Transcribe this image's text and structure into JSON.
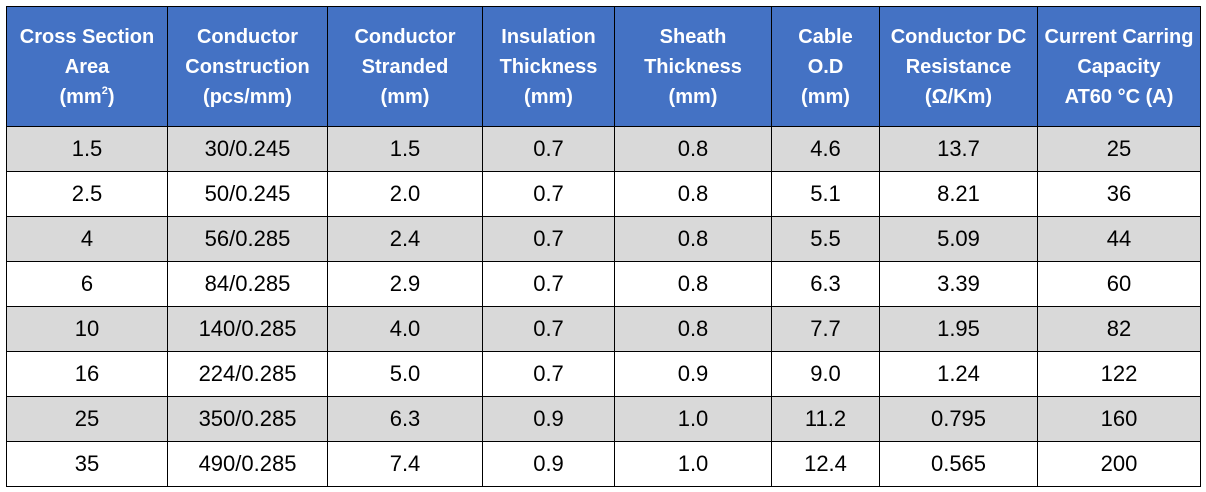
{
  "headers": [
    {
      "lines": [
        "Cross Section",
        "Area"
      ],
      "unit_prefix": "(mm",
      "unit_sup": "2",
      "unit_suffix": ")"
    },
    {
      "lines": [
        "Conductor",
        "Construction",
        "(pcs/mm)"
      ]
    },
    {
      "lines": [
        "Conductor",
        "Stranded",
        "(mm)"
      ]
    },
    {
      "lines": [
        "Insulation",
        "Thickness",
        "(mm)"
      ]
    },
    {
      "lines": [
        "Sheath",
        "Thickness",
        "(mm)"
      ]
    },
    {
      "lines": [
        "Cable",
        "O.D",
        "(mm)"
      ]
    },
    {
      "lines": [
        "Conductor DC",
        "Resistance",
        "(Ω/Km)"
      ]
    },
    {
      "lines": [
        "Current Carring",
        "Capacity",
        "AT60 °C (A)"
      ]
    }
  ],
  "rows": [
    [
      "1.5",
      "30/0.245",
      "1.5",
      "0.7",
      "0.8",
      "4.6",
      "13.7",
      "25"
    ],
    [
      "2.5",
      "50/0.245",
      "2.0",
      "0.7",
      "0.8",
      "5.1",
      "8.21",
      "36"
    ],
    [
      "4",
      "56/0.285",
      "2.4",
      "0.7",
      "0.8",
      "5.5",
      "5.09",
      "44"
    ],
    [
      "6",
      "84/0.285",
      "2.9",
      "0.7",
      "0.8",
      "6.3",
      "3.39",
      "60"
    ],
    [
      "10",
      "140/0.285",
      "4.0",
      "0.7",
      "0.8",
      "7.7",
      "1.95",
      "82"
    ],
    [
      "16",
      "224/0.285",
      "5.0",
      "0.7",
      "0.9",
      "9.0",
      "1.24",
      "122"
    ],
    [
      "25",
      "350/0.285",
      "6.3",
      "0.9",
      "1.0",
      "11.2",
      "0.795",
      "160"
    ],
    [
      "35",
      "490/0.285",
      "7.4",
      "0.9",
      "1.0",
      "12.4",
      "0.565",
      "200"
    ]
  ],
  "colors": {
    "header_bg": "#4472c4",
    "header_text": "#ffffff",
    "row_shaded": "#d9d9d9",
    "row_plain": "#ffffff",
    "border": "#000000"
  }
}
